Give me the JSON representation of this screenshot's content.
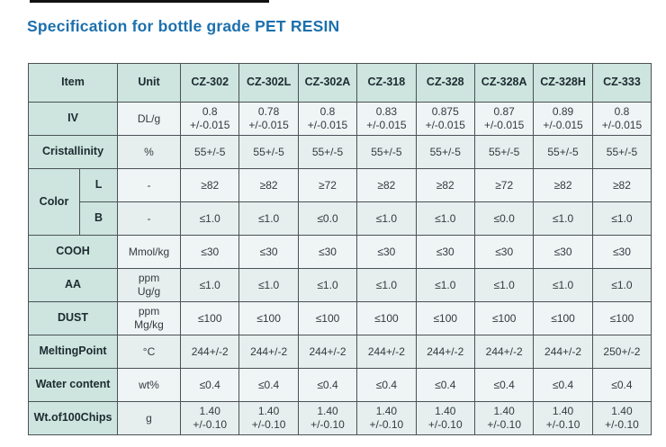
{
  "title": "Specification for bottle grade PET RESIN",
  "accent_color": "#1d70ad",
  "table_colors": {
    "header_bg": "#cde5de",
    "cell_bg_light": "#eff4f5",
    "cell_bg_dark": "#e6efed",
    "border": "#4b5154"
  },
  "table": {
    "headers": [
      "Item",
      "Unit",
      "CZ-302",
      "CZ-302L",
      "CZ-302A",
      "CZ-318",
      "CZ-328",
      "CZ-328A",
      "CZ-328H",
      "CZ-333"
    ],
    "rows": [
      {
        "item": "IV",
        "unit": "DL/g",
        "values": [
          "0.8\n+/-0.015",
          "0.78\n+/-0.015",
          "0.8\n+/-0.015",
          "0.83\n+/-0.015",
          "0.875\n+/-0.015",
          "0.87\n+/-0.015",
          "0.89\n+/-0.015",
          "0.8\n+/-0.015"
        ]
      },
      {
        "item": "Cristallinity",
        "unit": "%",
        "values": [
          "55+/-5",
          "55+/-5",
          "55+/-5",
          "55+/-5",
          "55+/-5",
          "55+/-5",
          "55+/-5",
          "55+/-5"
        ]
      },
      {
        "group": "Color",
        "item": "L",
        "unit": "-",
        "values": [
          "≥82",
          "≥82",
          "≥72",
          "≥82",
          "≥82",
          "≥72",
          "≥82",
          "≥82"
        ]
      },
      {
        "item": "B",
        "unit": "-",
        "values": [
          "≤1.0",
          "≤1.0",
          "≤0.0",
          "≤1.0",
          "≤1.0",
          "≤0.0",
          "≤1.0",
          "≤1.0"
        ]
      },
      {
        "item": "COOH",
        "unit": "Mmol/kg",
        "values": [
          "≤30",
          "≤30",
          "≤30",
          "≤30",
          "≤30",
          "≤30",
          "≤30",
          "≤30"
        ]
      },
      {
        "item": "AA",
        "unit": "ppm\nUg/g",
        "values": [
          "≤1.0",
          "≤1.0",
          "≤1.0",
          "≤1.0",
          "≤1.0",
          "≤1.0",
          "≤1.0",
          "≤1.0"
        ]
      },
      {
        "item": "DUST",
        "unit": "ppm\nMg/kg",
        "values": [
          "≤100",
          "≤100",
          "≤100",
          "≤100",
          "≤100",
          "≤100",
          "≤100",
          "≤100"
        ]
      },
      {
        "item": "MeltingPoint",
        "unit": "°C",
        "values": [
          "244+/-2",
          "244+/-2",
          "244+/-2",
          "244+/-2",
          "244+/-2",
          "244+/-2",
          "244+/-2",
          "250+/-2"
        ]
      },
      {
        "item": "Water content",
        "unit": "wt%",
        "values": [
          "≤0.4",
          "≤0.4",
          "≤0.4",
          "≤0.4",
          "≤0.4",
          "≤0.4",
          "≤0.4",
          "≤0.4"
        ]
      },
      {
        "item": "Wt.of100Chips",
        "unit": "g",
        "values": [
          "1.40\n+/-0.10",
          "1.40\n+/-0.10",
          "1.40\n+/-0.10",
          "1.40\n+/-0.10",
          "1.40\n+/-0.10",
          "1.40\n+/-0.10",
          "1.40\n+/-0.10",
          "1.40\n+/-0.10"
        ]
      }
    ]
  }
}
